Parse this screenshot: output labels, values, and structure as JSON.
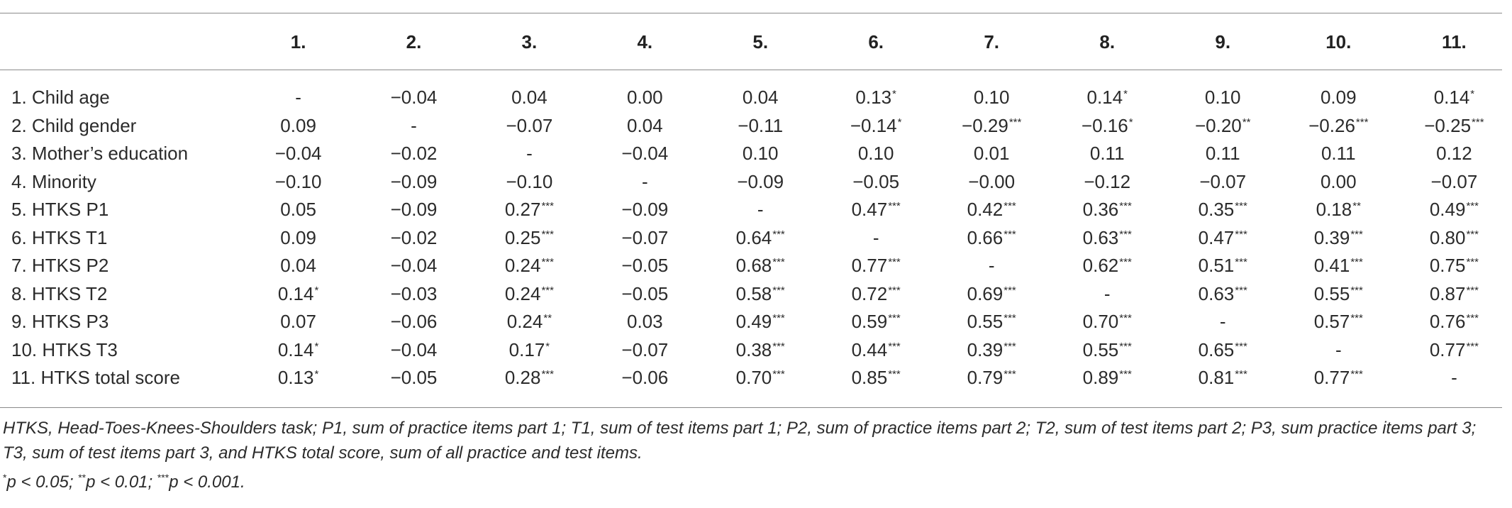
{
  "table": {
    "columns": [
      "1.",
      "2.",
      "3.",
      "4.",
      "5.",
      "6.",
      "7.",
      "8.",
      "9.",
      "10.",
      "11."
    ],
    "rows": [
      {
        "label": "1. Child age",
        "cells": [
          {
            "v": "-",
            "s": ""
          },
          {
            "v": "−0.04",
            "s": ""
          },
          {
            "v": "0.04",
            "s": ""
          },
          {
            "v": "0.00",
            "s": ""
          },
          {
            "v": "0.04",
            "s": ""
          },
          {
            "v": "0.13",
            "s": "*"
          },
          {
            "v": "0.10",
            "s": ""
          },
          {
            "v": "0.14",
            "s": "*"
          },
          {
            "v": "0.10",
            "s": ""
          },
          {
            "v": "0.09",
            "s": ""
          },
          {
            "v": "0.14",
            "s": "*"
          }
        ]
      },
      {
        "label": "2. Child gender",
        "cells": [
          {
            "v": "0.09",
            "s": ""
          },
          {
            "v": "-",
            "s": ""
          },
          {
            "v": "−0.07",
            "s": ""
          },
          {
            "v": "0.04",
            "s": ""
          },
          {
            "v": "−0.11",
            "s": ""
          },
          {
            "v": "−0.14",
            "s": "*"
          },
          {
            "v": "−0.29",
            "s": "***"
          },
          {
            "v": "−0.16",
            "s": "*"
          },
          {
            "v": "−0.20",
            "s": "**"
          },
          {
            "v": "−0.26",
            "s": "***"
          },
          {
            "v": "−0.25",
            "s": "***"
          }
        ]
      },
      {
        "label": "3. Mother’s education",
        "cells": [
          {
            "v": "−0.04",
            "s": ""
          },
          {
            "v": "−0.02",
            "s": ""
          },
          {
            "v": "-",
            "s": ""
          },
          {
            "v": "−0.04",
            "s": ""
          },
          {
            "v": "0.10",
            "s": ""
          },
          {
            "v": "0.10",
            "s": ""
          },
          {
            "v": "0.01",
            "s": ""
          },
          {
            "v": "0.11",
            "s": ""
          },
          {
            "v": "0.11",
            "s": ""
          },
          {
            "v": "0.11",
            "s": ""
          },
          {
            "v": "0.12",
            "s": ""
          }
        ]
      },
      {
        "label": "4. Minority",
        "cells": [
          {
            "v": "−0.10",
            "s": ""
          },
          {
            "v": "−0.09",
            "s": ""
          },
          {
            "v": "−0.10",
            "s": ""
          },
          {
            "v": "-",
            "s": ""
          },
          {
            "v": "−0.09",
            "s": ""
          },
          {
            "v": "−0.05",
            "s": ""
          },
          {
            "v": "−0.00",
            "s": ""
          },
          {
            "v": "−0.12",
            "s": ""
          },
          {
            "v": "−0.07",
            "s": ""
          },
          {
            "v": "0.00",
            "s": ""
          },
          {
            "v": "−0.07",
            "s": ""
          }
        ]
      },
      {
        "label": "5. HTKS P1",
        "cells": [
          {
            "v": "0.05",
            "s": ""
          },
          {
            "v": "−0.09",
            "s": ""
          },
          {
            "v": "0.27",
            "s": "***"
          },
          {
            "v": "−0.09",
            "s": ""
          },
          {
            "v": "-",
            "s": ""
          },
          {
            "v": "0.47",
            "s": "***"
          },
          {
            "v": "0.42",
            "s": "***"
          },
          {
            "v": "0.36",
            "s": "***"
          },
          {
            "v": "0.35",
            "s": "***"
          },
          {
            "v": "0.18",
            "s": "**"
          },
          {
            "v": "0.49",
            "s": "***"
          }
        ]
      },
      {
        "label": "6. HTKS T1",
        "cells": [
          {
            "v": "0.09",
            "s": ""
          },
          {
            "v": "−0.02",
            "s": ""
          },
          {
            "v": "0.25",
            "s": "***"
          },
          {
            "v": "−0.07",
            "s": ""
          },
          {
            "v": "0.64",
            "s": "***"
          },
          {
            "v": "-",
            "s": ""
          },
          {
            "v": "0.66",
            "s": "***"
          },
          {
            "v": "0.63",
            "s": "***"
          },
          {
            "v": "0.47",
            "s": "***"
          },
          {
            "v": "0.39",
            "s": "***"
          },
          {
            "v": "0.80",
            "s": "***"
          }
        ]
      },
      {
        "label": "7. HTKS P2",
        "cells": [
          {
            "v": "0.04",
            "s": ""
          },
          {
            "v": "−0.04",
            "s": ""
          },
          {
            "v": "0.24",
            "s": "***"
          },
          {
            "v": "−0.05",
            "s": ""
          },
          {
            "v": "0.68",
            "s": "***"
          },
          {
            "v": "0.77",
            "s": "***"
          },
          {
            "v": "-",
            "s": ""
          },
          {
            "v": "0.62",
            "s": "***"
          },
          {
            "v": "0.51",
            "s": "***"
          },
          {
            "v": "0.41",
            "s": "***"
          },
          {
            "v": "0.75",
            "s": "***"
          }
        ]
      },
      {
        "label": "8. HTKS T2",
        "cells": [
          {
            "v": "0.14",
            "s": "*"
          },
          {
            "v": "−0.03",
            "s": ""
          },
          {
            "v": "0.24",
            "s": "***"
          },
          {
            "v": "−0.05",
            "s": ""
          },
          {
            "v": "0.58",
            "s": "***"
          },
          {
            "v": "0.72",
            "s": "***"
          },
          {
            "v": "0.69",
            "s": "***"
          },
          {
            "v": "-",
            "s": ""
          },
          {
            "v": "0.63",
            "s": "***"
          },
          {
            "v": "0.55",
            "s": "***"
          },
          {
            "v": "0.87",
            "s": "***"
          }
        ]
      },
      {
        "label": "9. HTKS P3",
        "cells": [
          {
            "v": "0.07",
            "s": ""
          },
          {
            "v": "−0.06",
            "s": ""
          },
          {
            "v": "0.24",
            "s": "**"
          },
          {
            "v": "0.03",
            "s": ""
          },
          {
            "v": "0.49",
            "s": "***"
          },
          {
            "v": "0.59",
            "s": "***"
          },
          {
            "v": "0.55",
            "s": "***"
          },
          {
            "v": "0.70",
            "s": "***"
          },
          {
            "v": "-",
            "s": ""
          },
          {
            "v": "0.57",
            "s": "***"
          },
          {
            "v": "0.76",
            "s": "***"
          }
        ]
      },
      {
        "label": "10. HTKS T3",
        "cells": [
          {
            "v": "0.14",
            "s": "*"
          },
          {
            "v": "−0.04",
            "s": ""
          },
          {
            "v": "0.17",
            "s": "*"
          },
          {
            "v": "−0.07",
            "s": ""
          },
          {
            "v": "0.38",
            "s": "***"
          },
          {
            "v": "0.44",
            "s": "***"
          },
          {
            "v": "0.39",
            "s": "***"
          },
          {
            "v": "0.55",
            "s": "***"
          },
          {
            "v": "0.65",
            "s": "***"
          },
          {
            "v": "-",
            "s": ""
          },
          {
            "v": "0.77",
            "s": "***"
          }
        ]
      },
      {
        "label": "11. HTKS total score",
        "cells": [
          {
            "v": "0.13",
            "s": "*"
          },
          {
            "v": "−0.05",
            "s": ""
          },
          {
            "v": "0.28",
            "s": "***"
          },
          {
            "v": "−0.06",
            "s": ""
          },
          {
            "v": "0.70",
            "s": "***"
          },
          {
            "v": "0.85",
            "s": "***"
          },
          {
            "v": "0.79",
            "s": "***"
          },
          {
            "v": "0.89",
            "s": "***"
          },
          {
            "v": "0.81",
            "s": "***"
          },
          {
            "v": "0.77",
            "s": "***"
          },
          {
            "v": "-",
            "s": ""
          }
        ]
      }
    ]
  },
  "notes": {
    "abbreviations": "HTKS, Head-Toes-Knees-Shoulders task; P1, sum of practice items part 1; T1, sum of test items part 1; P2, sum of practice items part 2; T2, sum of test items part 2; P3, sum practice items part 3; T3, sum of test items part 3, and HTKS total score, sum of all practice and test items.",
    "significance": [
      {
        "stars": "*",
        "text": "p < 0.05; "
      },
      {
        "stars": "**",
        "text": "p < 0.01; "
      },
      {
        "stars": "***",
        "text": "p < 0.001."
      }
    ]
  }
}
